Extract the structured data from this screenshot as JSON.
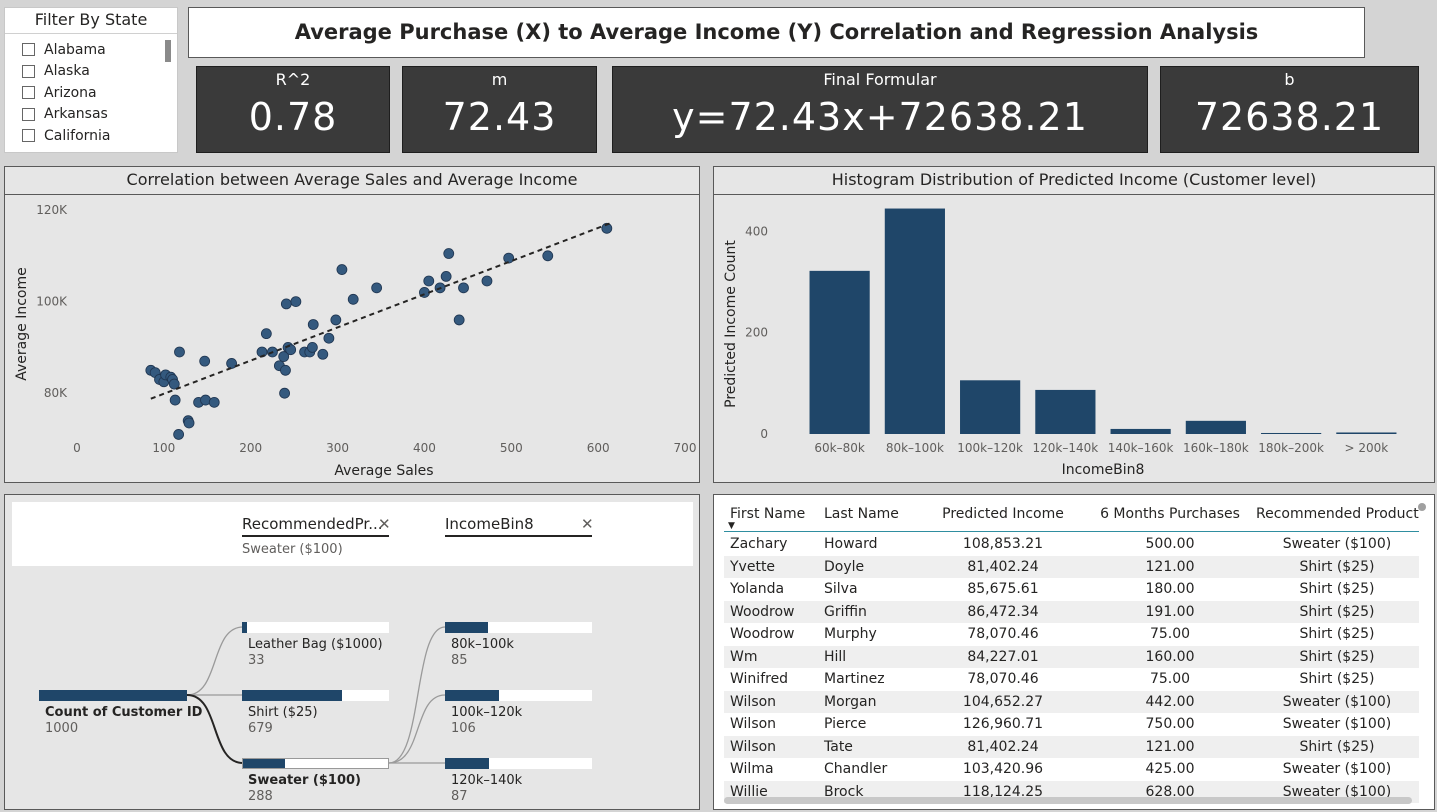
{
  "filter": {
    "title": "Filter By State",
    "states": [
      "Alabama",
      "Alaska",
      "Arizona",
      "Arkansas",
      "California"
    ]
  },
  "title": "Average Purchase (X) to Average Income (Y) Correlation and Regression Analysis",
  "kpis": [
    {
      "label": "R^2",
      "value": "0.78"
    },
    {
      "label": "m",
      "value": "72.43"
    },
    {
      "label": "Final Formular",
      "value": "y=72.43x+72638.21"
    },
    {
      "label": "b",
      "value": "72638.21"
    }
  ],
  "colors": {
    "bar": "#1f4669",
    "dot": "#34597e"
  },
  "scatter": {
    "title": "Correlation between Average Sales and Average Income",
    "chart_data": {
      "type": "scatter",
      "xlabel": "Average Sales",
      "ylabel": "Average Income",
      "xticks": [
        "0",
        "100",
        "200",
        "300",
        "400",
        "500",
        "600",
        "700"
      ],
      "yticks": [
        "120K",
        "100K",
        "80K"
      ],
      "xlim": [
        0,
        700
      ],
      "ylim": [
        70000,
        120000
      ],
      "trendline": {
        "m": 72.43,
        "b": 72638.21,
        "x_range": [
          85,
          615
        ]
      },
      "points": [
        [
          85,
          85000
        ],
        [
          90,
          84500
        ],
        [
          95,
          83000
        ],
        [
          100,
          82500
        ],
        [
          102,
          84000
        ],
        [
          108,
          83500
        ],
        [
          110,
          83000
        ],
        [
          112,
          82000
        ],
        [
          113,
          78500
        ],
        [
          118,
          89000
        ],
        [
          117,
          71000
        ],
        [
          128,
          74000
        ],
        [
          129,
          73500
        ],
        [
          140,
          78000
        ],
        [
          148,
          78500
        ],
        [
          147,
          87000
        ],
        [
          158,
          78000
        ],
        [
          178,
          86500
        ],
        [
          213,
          89000
        ],
        [
          218,
          93000
        ],
        [
          225,
          89000
        ],
        [
          233,
          86000
        ],
        [
          238,
          88000
        ],
        [
          239,
          80000
        ],
        [
          240,
          85000
        ],
        [
          243,
          90000
        ],
        [
          241,
          99500
        ],
        [
          246,
          89500
        ],
        [
          252,
          100000
        ],
        [
          262,
          89000
        ],
        [
          268,
          89000
        ],
        [
          271,
          90000
        ],
        [
          272,
          95000
        ],
        [
          283,
          88500
        ],
        [
          290,
          92000
        ],
        [
          298,
          96000
        ],
        [
          305,
          107000
        ],
        [
          318,
          100500
        ],
        [
          345,
          103000
        ],
        [
          400,
          102000
        ],
        [
          405,
          104500
        ],
        [
          418,
          103000
        ],
        [
          425,
          105500
        ],
        [
          428,
          110500
        ],
        [
          440,
          96000
        ],
        [
          445,
          103000
        ],
        [
          472,
          104500
        ],
        [
          497,
          109500
        ],
        [
          542,
          110000
        ],
        [
          610,
          116000
        ]
      ]
    }
  },
  "histogram": {
    "title": "Histogram Distribution of Predicted Income (Customer level)",
    "chart_data": {
      "type": "bar",
      "xlabel": "IncomeBin8",
      "ylabel": "Predicted Income Count",
      "categories": [
        "60k–80k",
        "80k–100k",
        "100k–120k",
        "120k–140k",
        "140k–160k",
        "160k–180k",
        "180k–200k",
        "> 200k"
      ],
      "values": [
        322,
        445,
        106,
        87,
        10,
        26,
        2,
        3
      ],
      "yticks": [
        "400",
        "200",
        "0"
      ],
      "ylim": [
        0,
        450
      ]
    }
  },
  "decomp": {
    "header1": "RecommendedPr...",
    "header1_value": "Sweater ($100)",
    "header2": "IncomeBin8",
    "root": {
      "label": "Count of Customer ID",
      "value": "1000",
      "count": 1000
    },
    "level1": [
      {
        "label": "Leather Bag ($1000)",
        "value": "33",
        "count": 33
      },
      {
        "label": "Shirt ($25)",
        "value": "679",
        "count": 679
      },
      {
        "label": "Sweater ($100)",
        "value": "288",
        "count": 288
      }
    ],
    "level2": [
      {
        "label": "80k–100k",
        "value": "85",
        "count": 85
      },
      {
        "label": "100k–120k",
        "value": "106",
        "count": 106
      },
      {
        "label": "120k–140k",
        "value": "87",
        "count": 87
      }
    ],
    "level2_total": 288
  },
  "table": {
    "columns": [
      "First Name",
      "Last Name",
      "Predicted Income",
      "6 Months Purchases",
      "Recommended Product"
    ],
    "rows": [
      [
        "Zachary",
        "Howard",
        "108,853.21",
        "500.00",
        "Sweater ($100)"
      ],
      [
        "Yvette",
        "Doyle",
        "81,402.24",
        "121.00",
        "Shirt ($25)"
      ],
      [
        "Yolanda",
        "Silva",
        "85,675.61",
        "180.00",
        "Shirt ($25)"
      ],
      [
        "Woodrow",
        "Griffin",
        "86,472.34",
        "191.00",
        "Shirt ($25)"
      ],
      [
        "Woodrow",
        "Murphy",
        "78,070.46",
        "75.00",
        "Shirt ($25)"
      ],
      [
        "Wm",
        "Hill",
        "84,227.01",
        "160.00",
        "Shirt ($25)"
      ],
      [
        "Winifred",
        "Martinez",
        "78,070.46",
        "75.00",
        "Shirt ($25)"
      ],
      [
        "Wilson",
        "Morgan",
        "104,652.27",
        "442.00",
        "Sweater ($100)"
      ],
      [
        "Wilson",
        "Pierce",
        "126,960.71",
        "750.00",
        "Sweater ($100)"
      ],
      [
        "Wilson",
        "Tate",
        "81,402.24",
        "121.00",
        "Shirt ($25)"
      ],
      [
        "Wilma",
        "Chandler",
        "103,420.96",
        "425.00",
        "Sweater ($100)"
      ],
      [
        "Willie",
        "Brock",
        "118,124.25",
        "628.00",
        "Sweater ($100)"
      ]
    ]
  }
}
